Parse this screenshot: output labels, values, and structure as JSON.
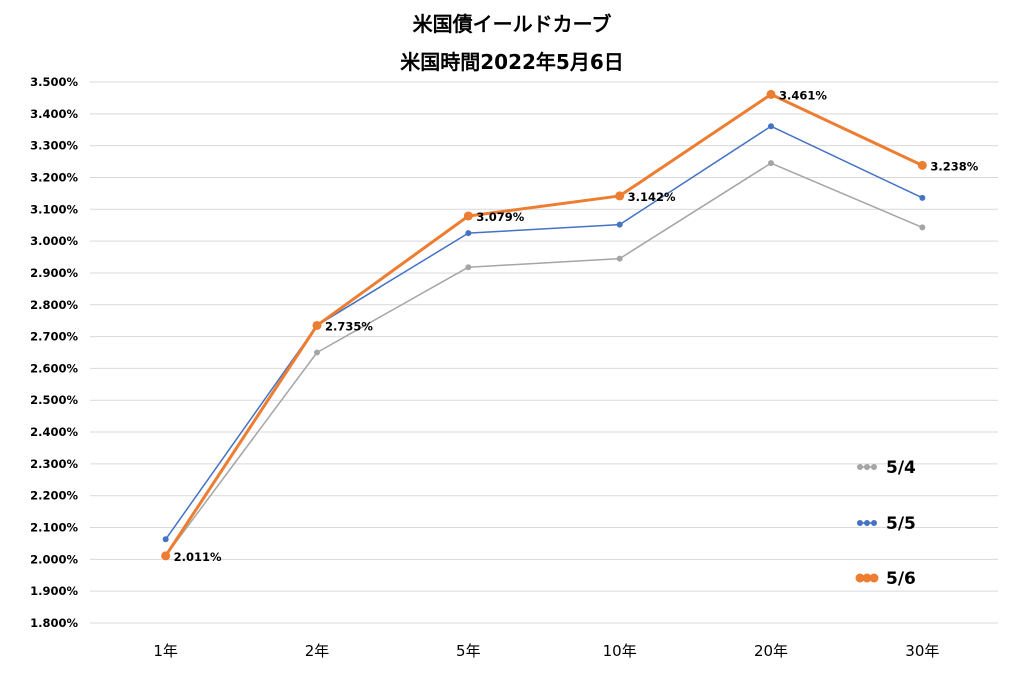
{
  "chart_data": {
    "type": "line",
    "title_line1": "米国債イールドカーブ",
    "title_line2": "米国時間2022年5月6日",
    "xlabel": "",
    "ylabel": "",
    "categories": [
      "1年",
      "2年",
      "5年",
      "10年",
      "20年",
      "30年"
    ],
    "ylim": [
      1.8,
      3.5
    ],
    "ytick_step": 0.1,
    "ytick_format": "%.3f%",
    "grid": "horizontal",
    "legend_position": "right",
    "series": [
      {
        "name": "5/4",
        "color": "#a5a5a5",
        "values": [
          2.011,
          2.65,
          2.918,
          2.945,
          3.245,
          3.043
        ]
      },
      {
        "name": "5/5",
        "color": "#4472c4",
        "values": [
          2.063,
          2.735,
          3.025,
          3.052,
          3.361,
          3.136
        ]
      },
      {
        "name": "5/6",
        "color": "#ed7d31",
        "values": [
          2.011,
          2.735,
          3.079,
          3.142,
          3.461,
          3.238
        ],
        "data_labels": [
          "2.011%",
          "2.735%",
          "3.079%",
          "3.142%",
          "3.461%",
          "3.238%"
        ]
      }
    ]
  }
}
